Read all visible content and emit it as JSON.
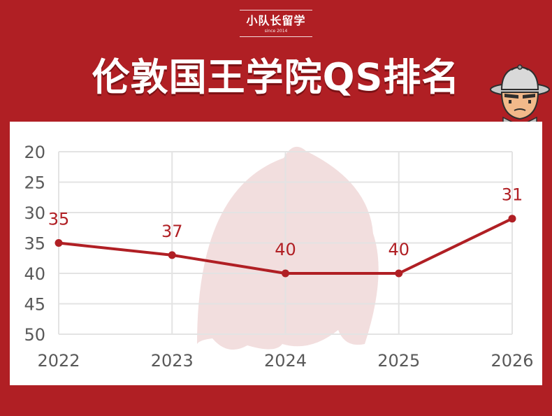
{
  "brand": {
    "name": "小队长留学",
    "since": "since 2014"
  },
  "title": "伦敦国王学院QS排名",
  "colors": {
    "background": "#b01f24",
    "line": "#b01f24",
    "grid": "#e3e3e3",
    "tick_text": "#595959",
    "watermark": "#f2dede"
  },
  "icons": {
    "mascot": "detective-mascot-icon",
    "watermark": "mascot-watermark-icon"
  },
  "chart_data": {
    "type": "line",
    "categories": [
      "2022",
      "2023",
      "2024",
      "2025",
      "2026"
    ],
    "series": [
      {
        "values": [
          35,
          37,
          40,
          40,
          31
        ]
      }
    ],
    "y_ticks": [
      "20",
      "25",
      "30",
      "35",
      "40",
      "45",
      "50"
    ],
    "ylim": [
      20,
      50
    ],
    "y_inverted": true,
    "grid": true,
    "data_labels": true,
    "legend": "none"
  }
}
